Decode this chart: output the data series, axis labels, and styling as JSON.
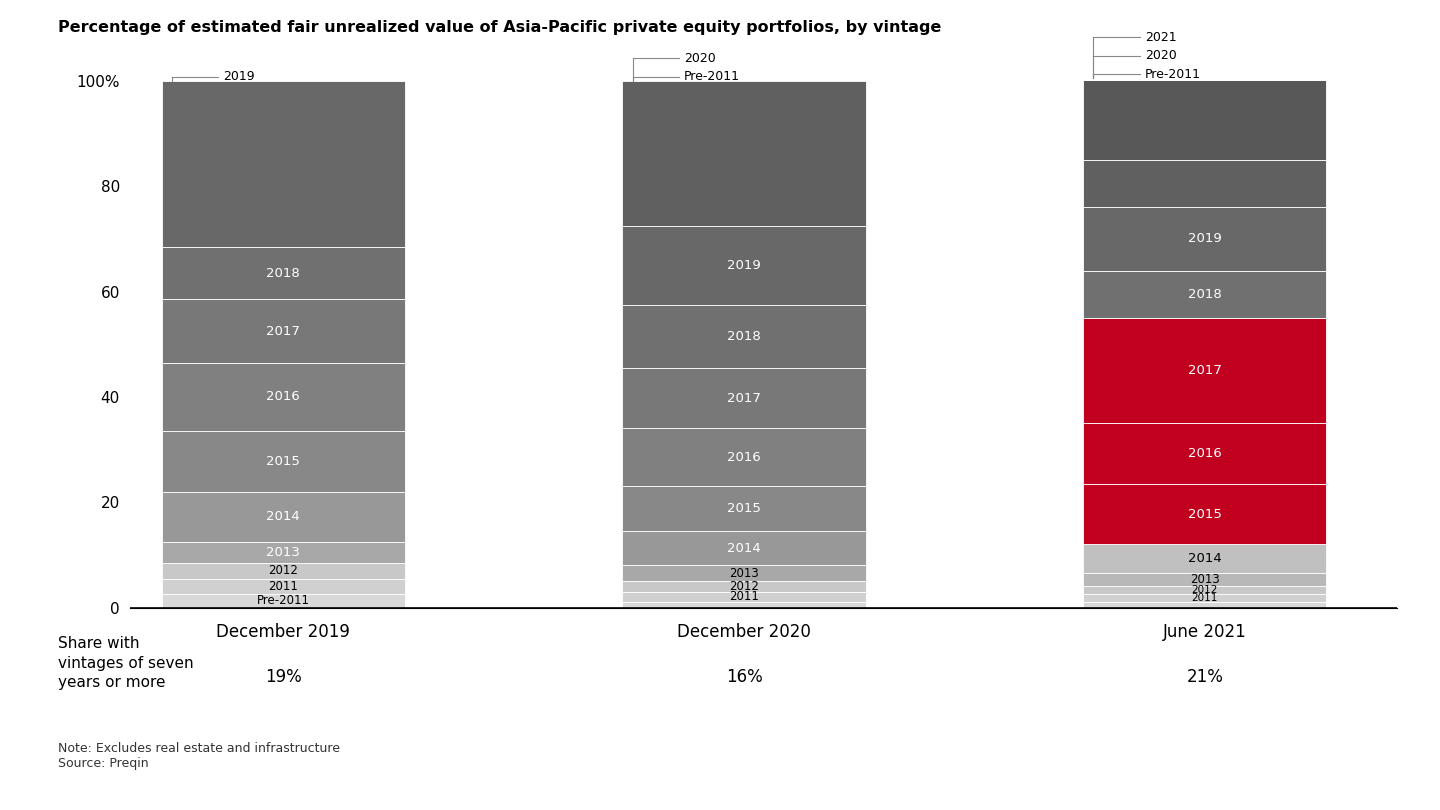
{
  "title": "Percentage of estimated fair unrealized value of Asia-Pacific private equity portfolios, by vintage",
  "note": "Note: Excludes real estate and infrastructure\nSource: Preqin",
  "bar_labels": [
    "December 2019",
    "December 2020",
    "June 2021"
  ],
  "share_labels": [
    "19%",
    "16%",
    "21%"
  ],
  "share_text": "Share with\nvintages of seven\nyears or more",
  "bars": [
    [
      {
        "vintage": "Pre-2011",
        "value": 2.5,
        "color": "#d8d8d8",
        "text_color": "black"
      },
      {
        "vintage": "2011",
        "value": 3.0,
        "color": "#d0d0d0",
        "text_color": "black"
      },
      {
        "vintage": "2012",
        "value": 3.0,
        "color": "#c8c8c8",
        "text_color": "black"
      },
      {
        "vintage": "2013",
        "value": 4.0,
        "color": "#a8a8a8",
        "text_color": "white"
      },
      {
        "vintage": "2014",
        "value": 9.5,
        "color": "#989898",
        "text_color": "white"
      },
      {
        "vintage": "2015",
        "value": 11.5,
        "color": "#888888",
        "text_color": "white"
      },
      {
        "vintage": "2016",
        "value": 13.0,
        "color": "#808080",
        "text_color": "white"
      },
      {
        "vintage": "2017",
        "value": 12.0,
        "color": "#787878",
        "text_color": "white"
      },
      {
        "vintage": "2018",
        "value": 10.0,
        "color": "#707070",
        "text_color": "white"
      },
      {
        "vintage": "2019",
        "value": 31.5,
        "color": "#686868",
        "text_color": "white",
        "label_outside": true
      }
    ],
    [
      {
        "vintage": "Pre-2011",
        "value": 1.0,
        "color": "#d8d8d8",
        "text_color": "black",
        "label_outside": true
      },
      {
        "vintage": "2011",
        "value": 2.0,
        "color": "#d0d0d0",
        "text_color": "black"
      },
      {
        "vintage": "2012",
        "value": 2.0,
        "color": "#c8c8c8",
        "text_color": "black"
      },
      {
        "vintage": "2013",
        "value": 3.0,
        "color": "#a8a8a8",
        "text_color": "black"
      },
      {
        "vintage": "2014",
        "value": 6.5,
        "color": "#989898",
        "text_color": "white"
      },
      {
        "vintage": "2015",
        "value": 8.5,
        "color": "#888888",
        "text_color": "white"
      },
      {
        "vintage": "2016",
        "value": 11.0,
        "color": "#808080",
        "text_color": "white"
      },
      {
        "vintage": "2017",
        "value": 11.5,
        "color": "#787878",
        "text_color": "white"
      },
      {
        "vintage": "2018",
        "value": 12.0,
        "color": "#707070",
        "text_color": "white"
      },
      {
        "vintage": "2019",
        "value": 15.0,
        "color": "#686868",
        "text_color": "white"
      },
      {
        "vintage": "2020",
        "value": 27.5,
        "color": "#606060",
        "text_color": "white",
        "label_outside": true
      }
    ],
    [
      {
        "vintage": "Pre-2011",
        "value": 1.0,
        "color": "#d8d8d8",
        "text_color": "black",
        "label_outside": true
      },
      {
        "vintage": "2011",
        "value": 1.5,
        "color": "#d0d0d0",
        "text_color": "black"
      },
      {
        "vintage": "2012",
        "value": 1.5,
        "color": "#c8c8c8",
        "text_color": "black"
      },
      {
        "vintage": "2013",
        "value": 2.5,
        "color": "#b8b8b8",
        "text_color": "black"
      },
      {
        "vintage": "2014",
        "value": 5.5,
        "color": "#c0c0c0",
        "text_color": "black"
      },
      {
        "vintage": "2015",
        "value": 11.5,
        "color": "#c0001e",
        "text_color": "white"
      },
      {
        "vintage": "2016",
        "value": 11.5,
        "color": "#c0001e",
        "text_color": "white"
      },
      {
        "vintage": "2017",
        "value": 20.0,
        "color": "#c0001e",
        "text_color": "white"
      },
      {
        "vintage": "2018",
        "value": 9.0,
        "color": "#707070",
        "text_color": "white"
      },
      {
        "vintage": "2019",
        "value": 12.0,
        "color": "#686868",
        "text_color": "white"
      },
      {
        "vintage": "2020",
        "value": 9.0,
        "color": "#606060",
        "text_color": "white",
        "label_outside": true
      },
      {
        "vintage": "2021",
        "value": 15.5,
        "color": "#585858",
        "text_color": "white",
        "label_outside": true
      }
    ]
  ],
  "bar_positions": [
    1.0,
    2.8,
    4.6
  ],
  "bar_width": 0.95,
  "ylim": [
    0,
    100
  ],
  "yticks": [
    0,
    20,
    40,
    60,
    80,
    100
  ],
  "ytick_labels": [
    "0",
    "20",
    "40",
    "60",
    "80",
    "100%"
  ]
}
